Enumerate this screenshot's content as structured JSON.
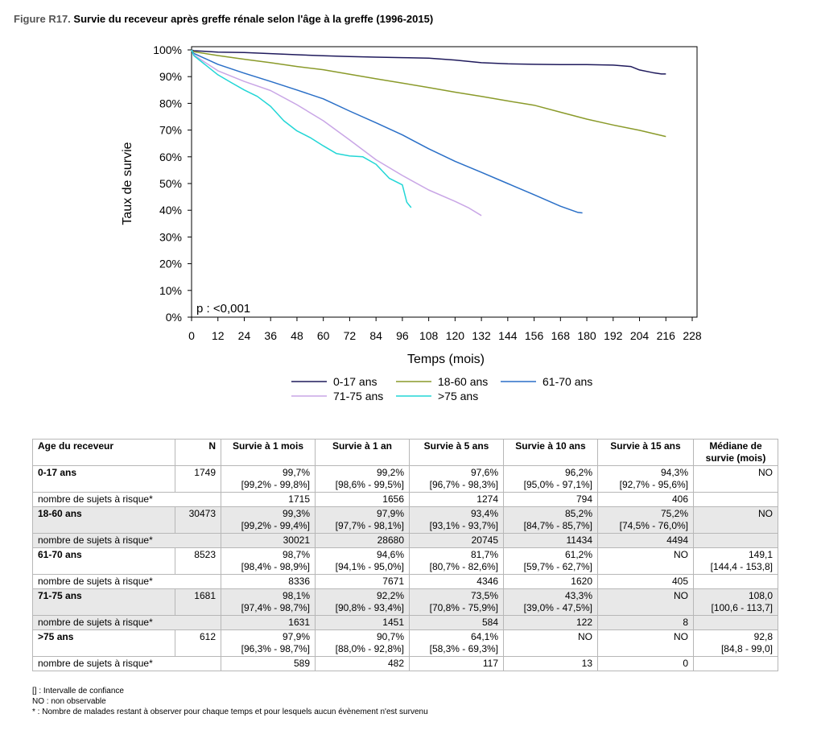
{
  "figure": {
    "number": "Figure R17.",
    "title": "Survie du receveur après greffe rénale selon l'âge à la greffe (1996-2015)"
  },
  "chart_data": {
    "type": "line",
    "ylabel": "Taux de survie",
    "xlabel": "Temps (mois)",
    "xlim": [
      0,
      228
    ],
    "ylim": [
      0,
      100
    ],
    "x_ticks": [
      "0",
      "12",
      "24",
      "36",
      "48",
      "60",
      "72",
      "84",
      "96",
      "108",
      "120",
      "132",
      "144",
      "156",
      "168",
      "180",
      "192",
      "204",
      "216",
      "228"
    ],
    "y_ticks": [
      "0%",
      "10%",
      "20%",
      "30%",
      "40%",
      "50%",
      "60%",
      "70%",
      "80%",
      "90%",
      "100%"
    ],
    "annotation": "p : <0,001",
    "legend_position": "bottom",
    "grid": false,
    "series": [
      {
        "name": "0-17 ans",
        "color": "#1f1a5c",
        "x": [
          0,
          1,
          6,
          12,
          24,
          36,
          48,
          60,
          72,
          84,
          96,
          108,
          120,
          132,
          144,
          156,
          168,
          180,
          192,
          200,
          204,
          210,
          214,
          216
        ],
        "y": [
          100,
          99.7,
          99.5,
          99.2,
          99.0,
          98.6,
          98.2,
          97.8,
          97.5,
          97.3,
          97.1,
          96.9,
          96.2,
          95.2,
          94.8,
          94.6,
          94.5,
          94.5,
          94.3,
          93.8,
          92.5,
          91.5,
          91.0,
          91.0
        ]
      },
      {
        "name": "18-60 ans",
        "color": "#8a9a2a",
        "x": [
          0,
          1,
          12,
          24,
          36,
          48,
          60,
          72,
          84,
          96,
          108,
          120,
          132,
          144,
          156,
          168,
          180,
          192,
          204,
          216
        ],
        "y": [
          100,
          99.3,
          97.9,
          96.5,
          95.2,
          93.8,
          92.6,
          90.9,
          89.2,
          87.6,
          85.9,
          84.2,
          82.6,
          80.9,
          79.3,
          76.7,
          74.1,
          71.9,
          69.9,
          67.6
        ]
      },
      {
        "name": "61-70 ans",
        "color": "#2a6fc7",
        "x": [
          0,
          1,
          12,
          24,
          36,
          48,
          60,
          72,
          84,
          96,
          108,
          120,
          132,
          144,
          156,
          168,
          176,
          178
        ],
        "y": [
          100,
          98.7,
          94.6,
          91.3,
          88.2,
          85.0,
          81.7,
          77.1,
          72.7,
          68.2,
          63.0,
          58.3,
          54.2,
          50.0,
          45.8,
          41.5,
          39.2,
          39.0
        ]
      },
      {
        "name": "71-75 ans",
        "color": "#c9a6e6",
        "x": [
          0,
          1,
          12,
          24,
          36,
          48,
          60,
          72,
          84,
          96,
          108,
          120,
          126,
          132
        ],
        "y": [
          100,
          98.1,
          92.2,
          88.2,
          84.8,
          79.5,
          73.5,
          66.3,
          58.9,
          53.0,
          47.6,
          43.3,
          41.0,
          38.0
        ]
      },
      {
        "name": ">75 ans",
        "color": "#22d6d6",
        "x": [
          0,
          1,
          12,
          18,
          24,
          30,
          36,
          42,
          48,
          54,
          60,
          66,
          72,
          78,
          84,
          90,
          96,
          98,
          100
        ],
        "y": [
          100,
          97.9,
          90.7,
          87.8,
          85.0,
          82.6,
          78.9,
          73.5,
          69.7,
          67.2,
          64.1,
          61.2,
          60.3,
          60.0,
          57.2,
          52.0,
          49.5,
          43.0,
          41.0
        ]
      }
    ]
  },
  "table": {
    "headers": [
      "Age du receveur",
      "N",
      "Survie à 1 mois",
      "Survie à 1 an",
      "Survie à 5 ans",
      "Survie à 10 ans",
      "Survie à 15 ans",
      "Médiane de survie (mois)"
    ],
    "groups": [
      {
        "age": "0-17 ans",
        "n": "1749",
        "vals": [
          "99,7%",
          "99,2%",
          "97,6%",
          "96,2%",
          "94,3%",
          "NO"
        ],
        "cis": [
          "[99,2% - 99,8%]",
          "[98,6% - 99,5%]",
          "[96,7% - 98,3%]",
          "[95,0% - 97,1%]",
          "[92,7% - 95,6%]",
          ""
        ],
        "risk_label": "nombre de sujets à risque*",
        "risk": [
          "1715",
          "1656",
          "1274",
          "794",
          "406",
          ""
        ]
      },
      {
        "age": "18-60 ans",
        "n": "30473",
        "vals": [
          "99,3%",
          "97,9%",
          "93,4%",
          "85,2%",
          "75,2%",
          "NO"
        ],
        "cis": [
          "[99,2% - 99,4%]",
          "[97,7% - 98,1%]",
          "[93,1% - 93,7%]",
          "[84,7% - 85,7%]",
          "[74,5% - 76,0%]",
          ""
        ],
        "risk_label": "nombre de sujets à risque*",
        "risk": [
          "30021",
          "28680",
          "20745",
          "11434",
          "4494",
          ""
        ]
      },
      {
        "age": "61-70 ans",
        "n": "8523",
        "vals": [
          "98,7%",
          "94,6%",
          "81,7%",
          "61,2%",
          "NO",
          "149,1"
        ],
        "cis": [
          "[98,4% - 98,9%]",
          "[94,1% - 95,0%]",
          "[80,7% - 82,6%]",
          "[59,7% - 62,7%]",
          "",
          "[144,4 - 153,8]"
        ],
        "risk_label": "nombre de sujets à risque*",
        "risk": [
          "8336",
          "7671",
          "4346",
          "1620",
          "405",
          ""
        ]
      },
      {
        "age": "71-75 ans",
        "n": "1681",
        "vals": [
          "98,1%",
          "92,2%",
          "73,5%",
          "43,3%",
          "NO",
          "108,0"
        ],
        "cis": [
          "[97,4% - 98,7%]",
          "[90,8% - 93,4%]",
          "[70,8% - 75,9%]",
          "[39,0% - 47,5%]",
          "",
          "[100,6 - 113,7]"
        ],
        "risk_label": "nombre de sujets à risque*",
        "risk": [
          "1631",
          "1451",
          "584",
          "122",
          "8",
          ""
        ]
      },
      {
        "age": ">75 ans",
        "n": "612",
        "vals": [
          "97,9%",
          "90,7%",
          "64,1%",
          "NO",
          "NO",
          "92,8"
        ],
        "cis": [
          "[96,3% - 98,7%]",
          "[88,0% - 92,8%]",
          "[58,3% - 69,3%]",
          "",
          "",
          "[84,8 - 99,0]"
        ],
        "risk_label": "nombre de sujets à risque*",
        "risk": [
          "589",
          "482",
          "117",
          "13",
          "0",
          ""
        ]
      }
    ]
  },
  "footnotes": [
    "[] : Intervalle de confiance",
    "NO : non observable",
    "* : Nombre de malades restant à observer pour chaque temps et pour lesquels aucun évènement n'est survenu"
  ]
}
